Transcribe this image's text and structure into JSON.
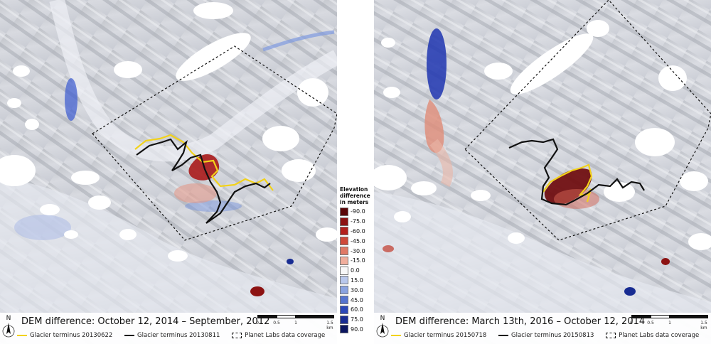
{
  "colors": {
    "terminus_1": "#f2d21b",
    "terminus_2": "#111111",
    "loss_strong": "#7a1010",
    "gain_strong": "#101a7a"
  },
  "icons": {
    "north": "north-arrow-icon"
  },
  "panels": [
    {
      "title": "DEM difference: October 12, 2014 – September, 2012",
      "scale": {
        "labels": [
          "0",
          "0.5",
          "1",
          "1.5 km"
        ]
      },
      "legend": [
        {
          "icon": "yellow-line-icon",
          "label": "Glacier terminus 20130622"
        },
        {
          "icon": "black-line-icon",
          "label": "Glacier terminus 20130811"
        },
        {
          "icon": "dashed-box-icon",
          "label": "Planet Labs data coverage"
        }
      ]
    },
    {
      "title": "DEM difference: March 13th, 2016 – October 12, 2014",
      "scale": {
        "labels": [
          "0",
          "0.5",
          "1",
          "1.5 km"
        ]
      },
      "legend": [
        {
          "icon": "yellow-line-icon",
          "label": "Glacier terminus 20150718"
        },
        {
          "icon": "black-line-icon",
          "label": "Glacier terminus 20150813"
        },
        {
          "icon": "dashed-box-icon",
          "label": "Planet Labs data coverage"
        }
      ]
    }
  ],
  "colorbar": {
    "title": [
      "Elevation",
      "difference",
      "in meters"
    ],
    "entries": [
      {
        "label": "-90.0",
        "color": "#5a0608"
      },
      {
        "label": "-75.0",
        "color": "#8c1212"
      },
      {
        "label": "-60.0",
        "color": "#b3201c"
      },
      {
        "label": "-45.0",
        "color": "#cf4a3a"
      },
      {
        "label": "-30.0",
        "color": "#e07a66"
      },
      {
        "label": "-15.0",
        "color": "#f0ae9c"
      },
      {
        "label": "0.0",
        "color": "#f8f8f8"
      },
      {
        "label": "15.0",
        "color": "#b9c8ec"
      },
      {
        "label": "30.0",
        "color": "#8aa3e0"
      },
      {
        "label": "45.0",
        "color": "#5574cf"
      },
      {
        "label": "60.0",
        "color": "#2b48b8"
      },
      {
        "label": "75.0",
        "color": "#182c92"
      },
      {
        "label": "90.0",
        "color": "#0c1660"
      }
    ]
  }
}
